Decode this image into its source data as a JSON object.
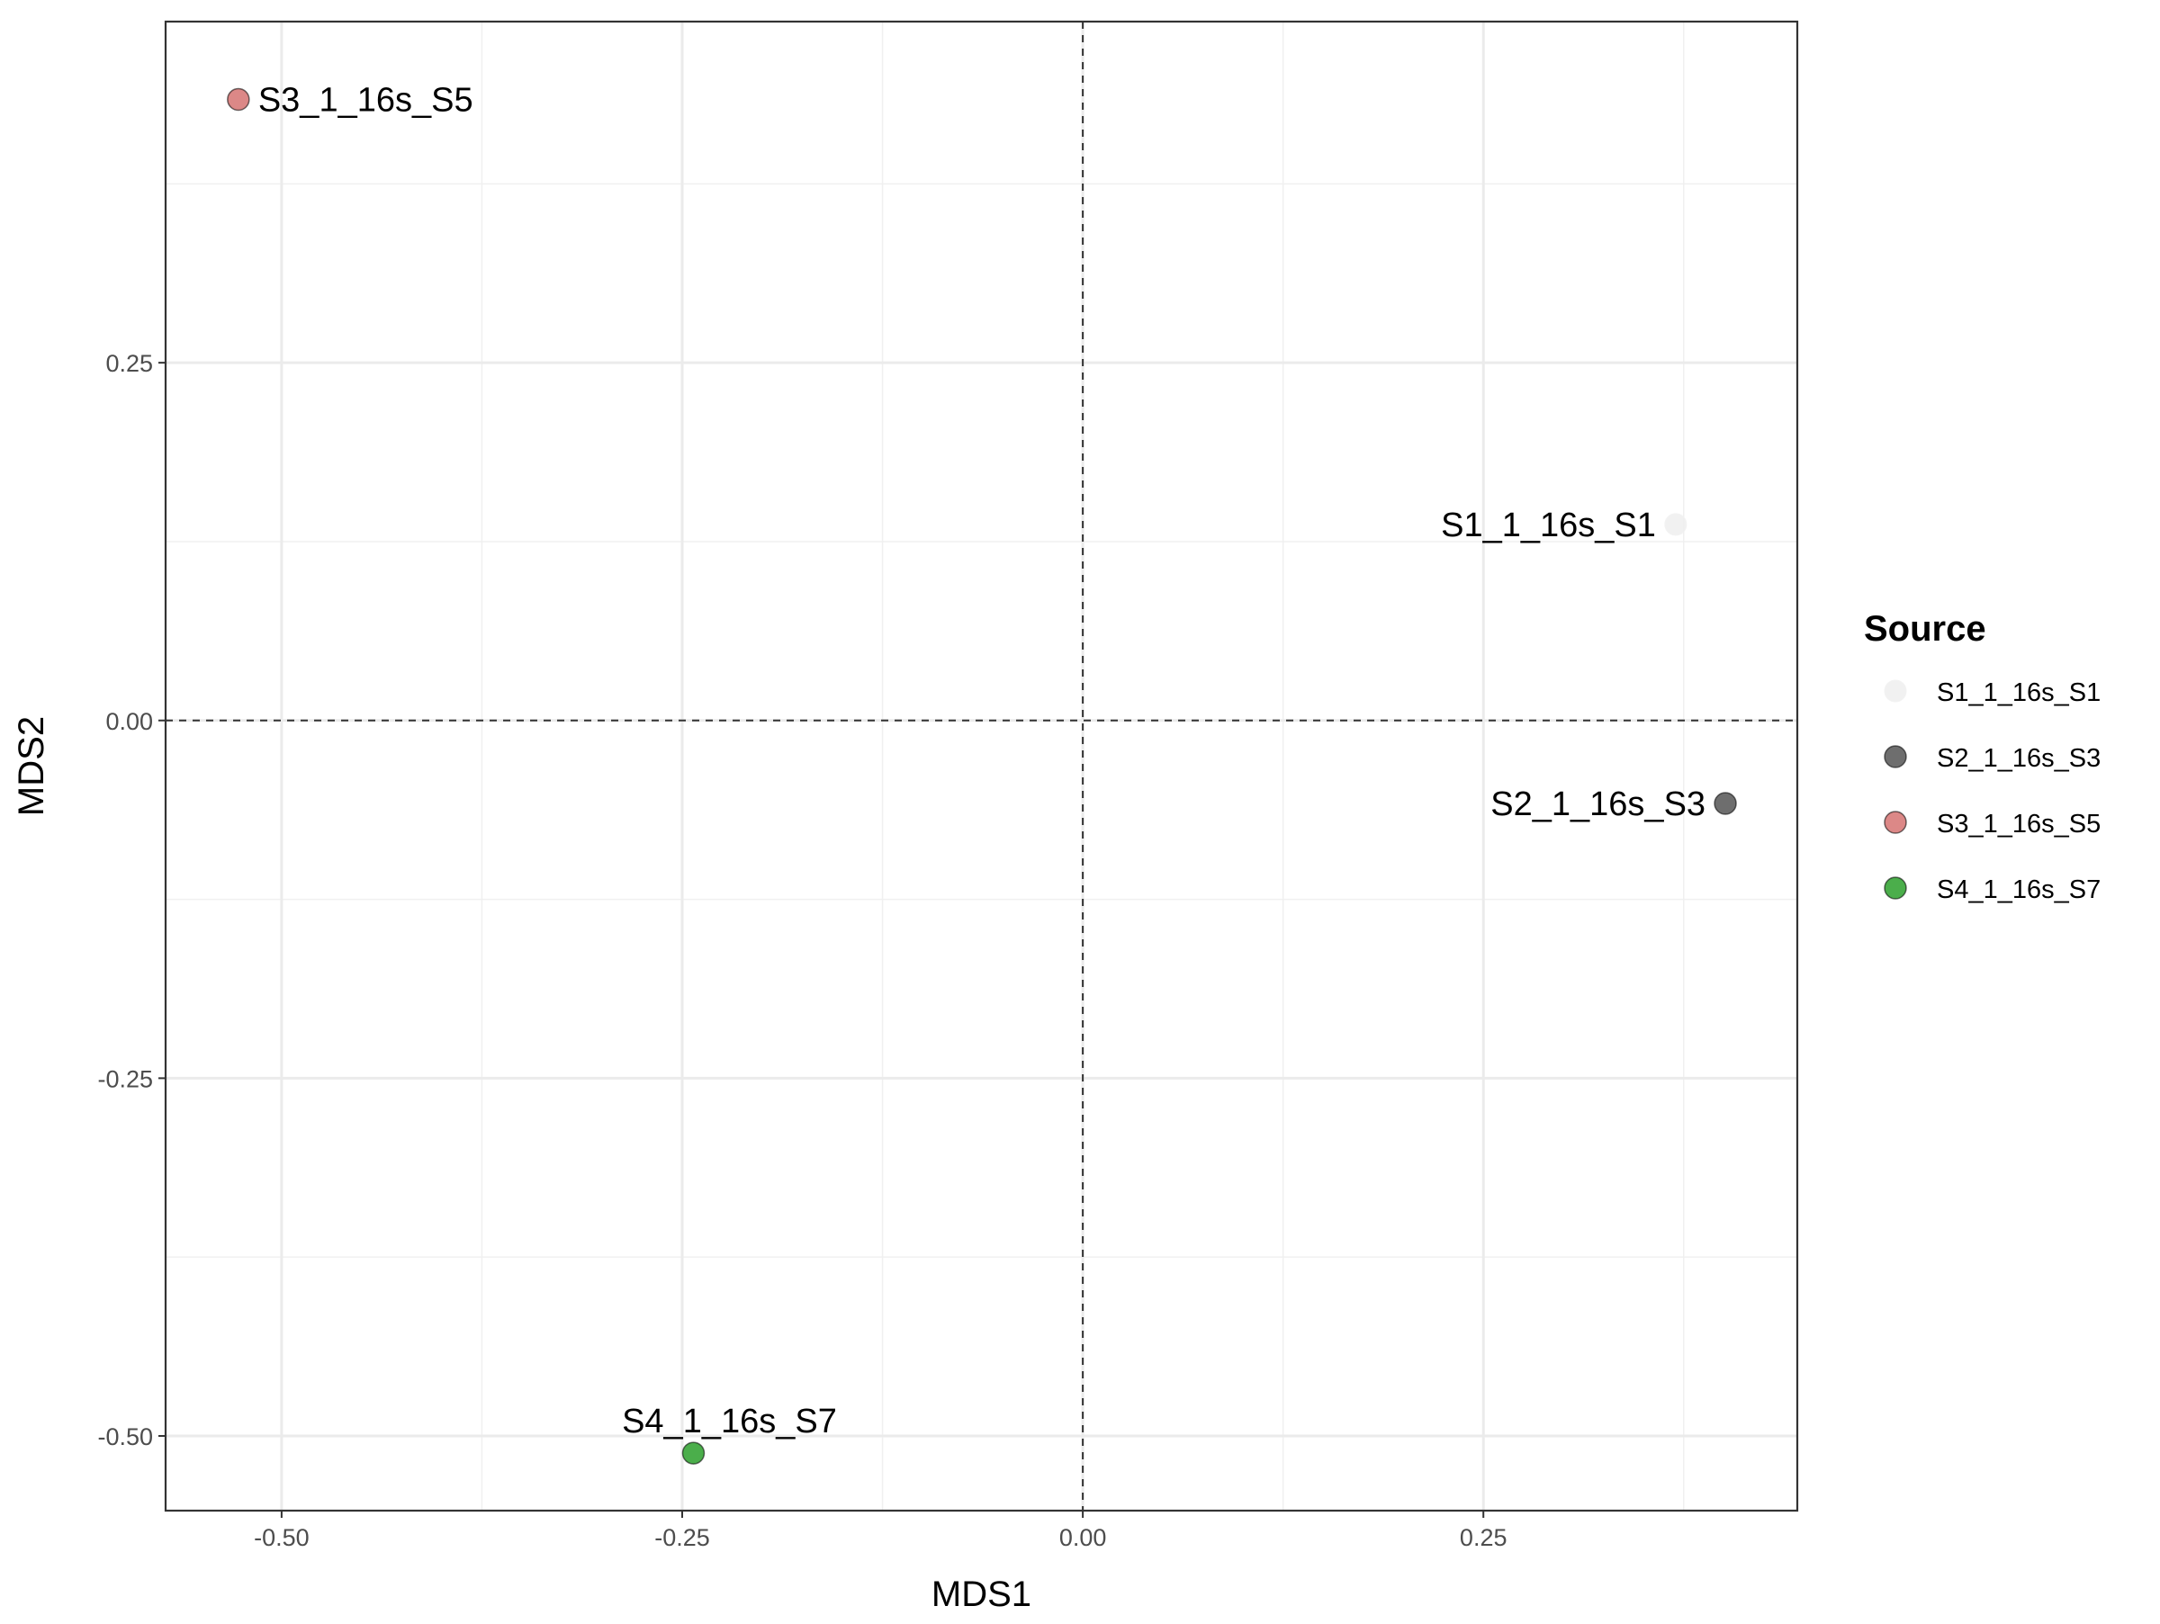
{
  "chart_data": {
    "type": "scatter",
    "title": "",
    "xlabel": "MDS1",
    "ylabel": "MDS2",
    "xlim": [
      -0.5724,
      0.4459
    ],
    "ylim": [
      -0.5522,
      0.4884
    ],
    "x_ticks": [
      -0.5,
      -0.25,
      0.0,
      0.25
    ],
    "x_tick_labels": [
      "-0.50",
      "-0.25",
      "0.00",
      "0.25"
    ],
    "y_ticks": [
      -0.5,
      -0.25,
      0.0,
      0.25
    ],
    "y_tick_labels": [
      "-0.50",
      "-0.25",
      "0.00",
      "0.25"
    ],
    "grid": true,
    "reference_lines": {
      "x": 0,
      "y": 0,
      "style": "dashed"
    },
    "legend": {
      "title": "Source",
      "position": "right"
    },
    "series": [
      {
        "name": "S1_1_16s_S1",
        "color": "#eeeeee",
        "x": 0.37,
        "y": 0.137,
        "label": "S1_1_16s_S1",
        "label_side": "left"
      },
      {
        "name": "S2_1_16s_S3",
        "color": "#555555",
        "x": 0.401,
        "y": -0.058,
        "label": "S2_1_16s_S3",
        "label_side": "left"
      },
      {
        "name": "S3_1_16s_S5",
        "color": "#d67372",
        "x": -0.527,
        "y": 0.434,
        "label": "S3_1_16s_S5",
        "label_side": "right"
      },
      {
        "name": "S4_1_16s_S7",
        "color": "#2ca02c",
        "x": -0.243,
        "y": -0.512,
        "label": "S4_1_16s_S7",
        "label_side": "above"
      }
    ]
  }
}
